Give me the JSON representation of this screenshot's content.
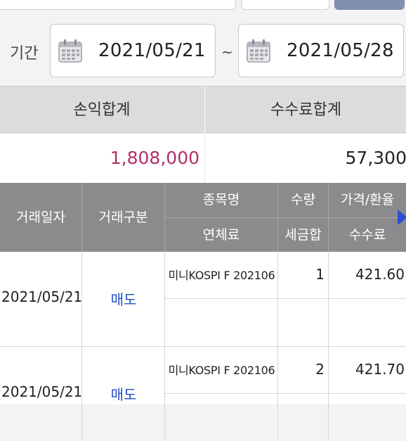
{
  "period": {
    "label": "기간",
    "start_date": "2021/05/21",
    "separator": "~",
    "end_date": "2021/05/28"
  },
  "summary": {
    "pnl_label": "손익합계",
    "fee_label": "수수료합계",
    "pnl_value": "1,808,000",
    "fee_value": "57,300"
  },
  "table": {
    "headers": {
      "trade_date": "거래일자",
      "trade_type": "거래구분",
      "item_name": "종목명",
      "overdue_fee": "연체료",
      "quantity": "수량",
      "tax_total": "세금합",
      "price_rate": "가격/환율",
      "commission": "수수료"
    },
    "rows": [
      {
        "date": "2021/05/21",
        "type": "매도",
        "item": "미니KOSPI F 202106",
        "qty": "1",
        "price": "421.60"
      },
      {
        "date": "2021/05/21",
        "type": "매도",
        "item": "미니KOSPI F 202106",
        "qty": "2",
        "price": "421.70"
      }
    ]
  },
  "colors": {
    "header_bg": "#8b8b8d",
    "pnl_color": "#b0306a",
    "sell_color": "#1f4ec2",
    "arrow_color": "#2a4fd6"
  },
  "icons": [
    "calendar-icon",
    "scroll-right-arrow-icon"
  ]
}
